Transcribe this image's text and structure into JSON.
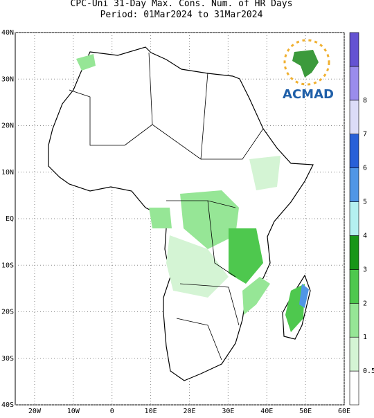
{
  "header": {
    "title": "CPC-Uni 31-Day Max. Cons. Num. of HR Days",
    "subtitle": "Period: 01Mar2024 to 31Mar2024"
  },
  "map": {
    "lon_range": [
      -25,
      60
    ],
    "lat_range": [
      -40,
      40
    ],
    "lon_ticks": [
      {
        "value": -20,
        "label": "20W"
      },
      {
        "value": -10,
        "label": "10W"
      },
      0,
      {
        "value": 10,
        "label": "10E"
      },
      {
        "value": 20,
        "label": "20E"
      },
      {
        "value": 30,
        "label": "30E"
      },
      {
        "value": 40,
        "label": "40E"
      },
      {
        "value": 50,
        "label": "50E"
      },
      {
        "value": 60,
        "label": "60E"
      }
    ],
    "lat_ticks": [
      {
        "value": 40,
        "label": "40N"
      },
      {
        "value": 30,
        "label": "30N"
      },
      {
        "value": 20,
        "label": "20N"
      },
      {
        "value": 10,
        "label": "10N"
      },
      {
        "value": 0,
        "label": "EQ"
      },
      {
        "value": -10,
        "label": "10S"
      },
      {
        "value": -20,
        "label": "20S"
      },
      {
        "value": -30,
        "label": "30S"
      },
      {
        "value": -40,
        "label": "40S"
      }
    ]
  },
  "colorbar": {
    "levels": [
      0.5,
      1,
      2,
      3,
      4,
      5,
      6,
      7,
      8
    ],
    "colors": [
      "#ffffff",
      "#d4f4d4",
      "#96e696",
      "#4ec84e",
      "#189618",
      "#b4f0f0",
      "#5096e6",
      "#2860d8",
      "#dcdcf8",
      "#9a8cec",
      "#6452d2"
    ]
  },
  "logo": {
    "text": "ACMAD"
  }
}
